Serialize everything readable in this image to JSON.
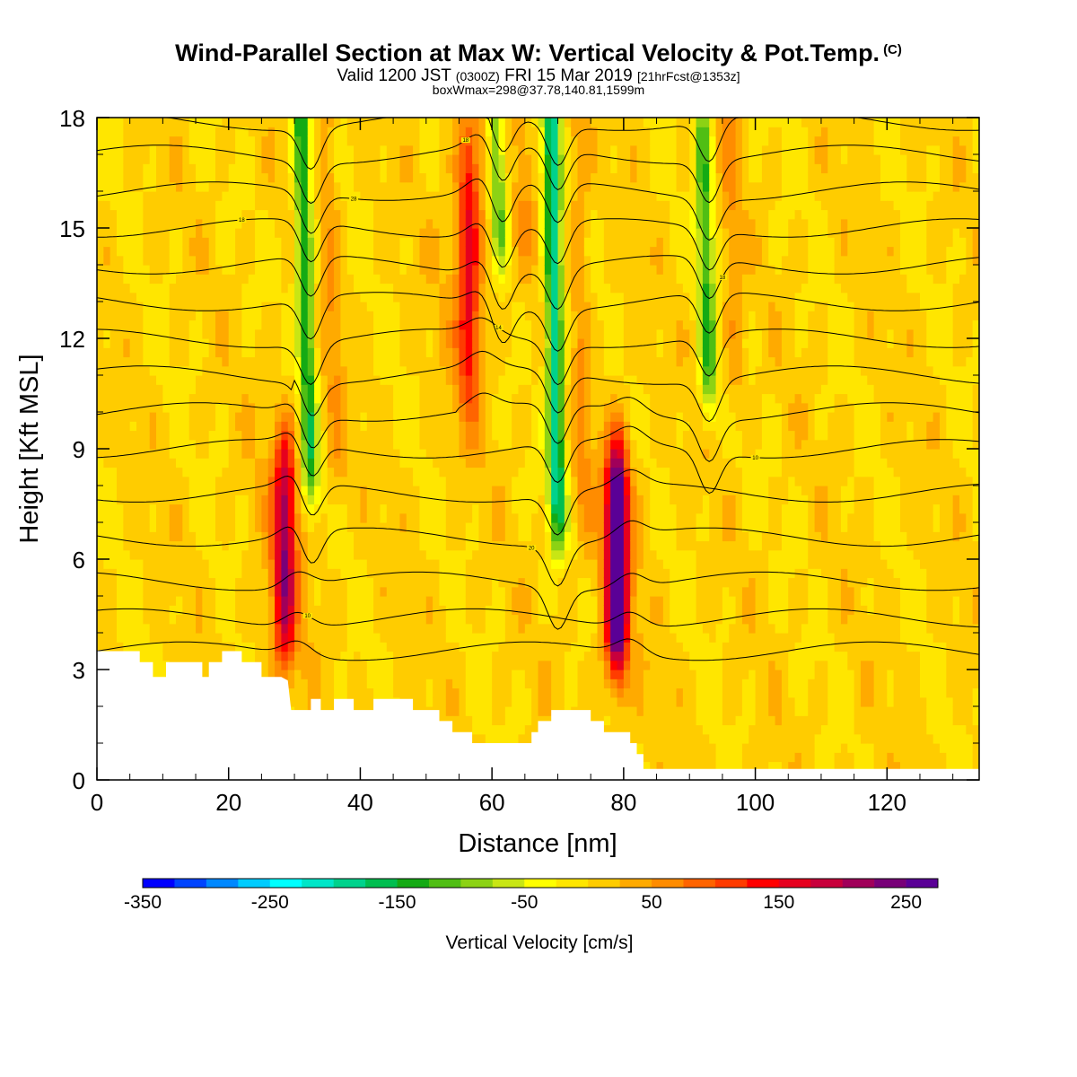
{
  "title": {
    "main": "Wind-Parallel Section at Max W: Vertical Velocity & Pot.Temp.",
    "copyright": "(C)",
    "valid_prefix": "Valid 1200 JST",
    "utc": "(0300Z)",
    "valid_date": "FRI 15 Mar 2019",
    "forecast": "[21hrFcst@1353z]",
    "box_info": "boxWmax=298@37.78,140.81,1599m"
  },
  "chart_data": {
    "type": "heatmap",
    "xlabel": "Distance [nm]",
    "ylabel": "Height [Kft MSL]",
    "xlim": [
      0,
      134
    ],
    "ylim": [
      0,
      18
    ],
    "x_ticks": [
      0,
      20,
      40,
      60,
      80,
      100,
      120
    ],
    "y_ticks": [
      0,
      3,
      6,
      9,
      12,
      15,
      18
    ],
    "colorbar": {
      "title": "Vertical Velocity [cm/s]",
      "min": -350,
      "max": 275,
      "step": 25,
      "tick_values": [
        -350,
        -250,
        -150,
        -50,
        50,
        150,
        250
      ],
      "tick_labels": [
        "-350",
        "-250",
        "-150",
        "-50",
        "50",
        "150",
        "250"
      ],
      "colors": [
        "#0000ff",
        "#0044ff",
        "#0088ff",
        "#00ccff",
        "#00ffff",
        "#00e6c8",
        "#00d28c",
        "#00be50",
        "#14aa14",
        "#50be14",
        "#8cd214",
        "#c8e614",
        "#ffff00",
        "#ffe600",
        "#ffcc00",
        "#ffaa00",
        "#ff8c00",
        "#ff6400",
        "#ff3c00",
        "#ff0000",
        "#e6001e",
        "#c8003c",
        "#a0005a",
        "#780078",
        "#5a0096"
      ]
    },
    "updraft_cores": [
      {
        "x": 28.5,
        "z_bottom": 3.0,
        "z_top": 9.6,
        "peak_w": 175
      },
      {
        "x": 56.5,
        "z_bottom": 10.0,
        "z_top": 18.0,
        "peak_w": 125
      },
      {
        "x": 79.0,
        "z_bottom": 2.8,
        "z_top": 9.2,
        "peak_w": 298
      }
    ],
    "downdraft_bands": [
      {
        "x_top": 31.0,
        "x_bottom": 32.5,
        "z_bottom": 7.5,
        "z_top": 18.0,
        "peak_w": -150
      },
      {
        "x_top": 60.5,
        "x_bottom": 61.5,
        "z_bottom": 14.0,
        "z_top": 18.0,
        "peak_w": -125
      },
      {
        "x_top": 69.0,
        "x_bottom": 70.0,
        "z_bottom": 6.5,
        "z_top": 18.0,
        "peak_w": -200
      },
      {
        "x_top": 92.0,
        "x_bottom": 93.0,
        "z_bottom": 10.0,
        "z_top": 18.0,
        "peak_w": -125
      }
    ],
    "terrain_kft": [
      [
        0,
        3.5
      ],
      [
        6.5,
        3.5
      ],
      [
        6.5,
        3.2
      ],
      [
        8.5,
        3.2
      ],
      [
        8.5,
        2.8
      ],
      [
        10.5,
        2.8
      ],
      [
        10.5,
        3.2
      ],
      [
        16,
        3.2
      ],
      [
        16,
        2.8
      ],
      [
        17,
        2.8
      ],
      [
        17,
        3.2
      ],
      [
        19,
        3.2
      ],
      [
        19,
        3.5
      ],
      [
        22,
        3.5
      ],
      [
        22,
        3.2
      ],
      [
        25,
        3.2
      ],
      [
        25,
        2.8
      ],
      [
        28,
        2.8
      ],
      [
        29,
        2.7
      ],
      [
        29.5,
        1.9
      ],
      [
        32.5,
        1.9
      ],
      [
        32.5,
        2.2
      ],
      [
        34,
        2.2
      ],
      [
        34,
        1.9
      ],
      [
        36,
        1.9
      ],
      [
        36,
        2.2
      ],
      [
        39,
        2.2
      ],
      [
        39,
        1.9
      ],
      [
        42,
        1.9
      ],
      [
        42,
        2.2
      ],
      [
        48,
        2.2
      ],
      [
        48,
        1.9
      ],
      [
        52,
        1.9
      ],
      [
        52,
        1.6
      ],
      [
        54,
        1.6
      ],
      [
        54,
        1.3
      ],
      [
        57,
        1.3
      ],
      [
        57,
        1.0
      ],
      [
        66,
        1.0
      ],
      [
        66,
        1.3
      ],
      [
        67,
        1.3
      ],
      [
        67,
        1.6
      ],
      [
        69,
        1.6
      ],
      [
        69,
        1.9
      ],
      [
        75,
        1.9
      ],
      [
        75,
        1.6
      ],
      [
        77,
        1.6
      ],
      [
        77,
        1.3
      ],
      [
        81,
        1.3
      ],
      [
        81,
        1.0
      ],
      [
        82,
        1.0
      ],
      [
        82,
        0.7
      ],
      [
        83,
        0.7
      ],
      [
        83,
        0.3
      ],
      [
        134,
        0.3
      ]
    ],
    "theta_contours": [
      {
        "base": 3.5,
        "label": ""
      },
      {
        "base": 4.4,
        "label": "10"
      },
      {
        "base": 5.4,
        "label": ""
      },
      {
        "base": 6.6,
        "label": "20"
      },
      {
        "base": 7.8,
        "label": ""
      },
      {
        "base": 9.0,
        "label": "10"
      },
      {
        "base": 10.0,
        "label": ""
      },
      {
        "base": 11.0,
        "label": ""
      },
      {
        "base": 12.0,
        "label": "14"
      },
      {
        "base": 13.0,
        "label": ""
      },
      {
        "base": 14.0,
        "label": "18"
      },
      {
        "base": 15.0,
        "label": "18"
      },
      {
        "base": 16.0,
        "label": "28"
      },
      {
        "base": 17.0,
        "label": "18"
      },
      {
        "base": 17.9,
        "label": ""
      }
    ]
  }
}
